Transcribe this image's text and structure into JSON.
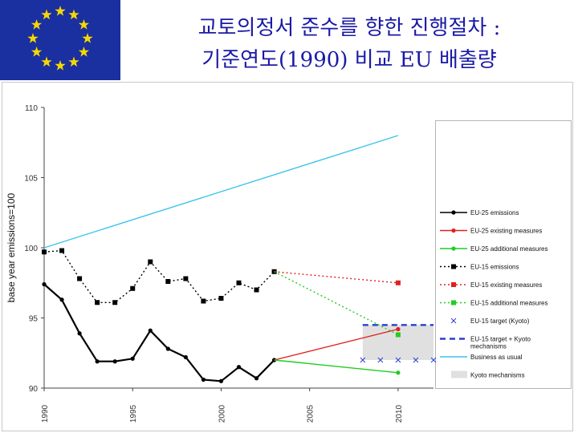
{
  "header": {
    "title_line1": "교토의정서 준수를 향한 진행절차 :",
    "title_line2": "기준연도(1990) 비교 EU 배출량",
    "flag_color": "#1a2fa0",
    "star_color": "#f5d800"
  },
  "chart_data": {
    "type": "line",
    "ylabel": "base year emissions=100",
    "xlim": [
      1990,
      2012
    ],
    "ylim": [
      90,
      110
    ],
    "x_ticks": [
      1990,
      1995,
      2000,
      2005,
      2010
    ],
    "y_ticks": [
      90,
      95,
      100,
      105,
      110
    ],
    "grid": false,
    "legend_position": "right",
    "series": [
      {
        "name": "EU-25 emissions",
        "color": "#000000",
        "style": "solid",
        "marker": "circle",
        "x": [
          1990,
          1991,
          1992,
          1993,
          1994,
          1995,
          1996,
          1997,
          1998,
          1999,
          2000,
          2001,
          2002,
          2003
        ],
        "y": [
          97.4,
          96.3,
          93.9,
          91.9,
          91.9,
          92.1,
          94.1,
          92.8,
          92.2,
          90.6,
          90.5,
          91.5,
          90.7,
          92.0
        ]
      },
      {
        "name": "EU-25 existing measures",
        "color": "#e02020",
        "style": "solid",
        "marker": "circle",
        "x": [
          2003,
          2010
        ],
        "y": [
          92.0,
          94.2
        ]
      },
      {
        "name": "EU-25 additional measures",
        "color": "#22cc22",
        "style": "solid",
        "marker": "circle",
        "x": [
          2003,
          2010
        ],
        "y": [
          92.0,
          91.1
        ]
      },
      {
        "name": "EU-15 emissions",
        "color": "#000000",
        "style": "dotted",
        "marker": "square",
        "x": [
          1990,
          1991,
          1992,
          1993,
          1994,
          1995,
          1996,
          1997,
          1998,
          1999,
          2000,
          2001,
          2002,
          2003
        ],
        "y": [
          99.7,
          99.8,
          97.8,
          96.1,
          96.1,
          97.1,
          99.0,
          97.6,
          97.8,
          96.2,
          96.4,
          97.5,
          97.0,
          98.3
        ]
      },
      {
        "name": "EU-15 existing measures",
        "color": "#e02020",
        "style": "dotted",
        "marker": "square",
        "x": [
          2003,
          2010
        ],
        "y": [
          98.3,
          97.5
        ]
      },
      {
        "name": "EU-15 additional measures",
        "color": "#22cc22",
        "style": "dotted",
        "marker": "square",
        "x": [
          2003,
          2010
        ],
        "y": [
          98.3,
          93.8
        ]
      },
      {
        "name": "EU-15 target (Kyoto)",
        "color": "#2a3fd0",
        "style": "none",
        "marker": "x",
        "x": [
          2008,
          2009,
          2010,
          2011,
          2012
        ],
        "y": [
          92.0,
          92.0,
          92.0,
          92.0,
          92.0
        ]
      },
      {
        "name": "EU-15 target + Kyoto mechanisms",
        "color": "#2a3fd0",
        "style": "dashed",
        "marker": "none",
        "x": [
          2008,
          2012
        ],
        "y": [
          94.5,
          94.5
        ]
      },
      {
        "name": "Business as usual",
        "color": "#3ec3ec",
        "style": "solid",
        "marker": "none",
        "x": [
          1990,
          2010
        ],
        "y": [
          100.0,
          108.0
        ]
      }
    ],
    "kyoto_mechanisms_band": {
      "name": "Kyoto mechanisms",
      "color": "#e0e0e0",
      "x": [
        2008,
        2012
      ],
      "y": [
        92.0,
        94.5
      ]
    }
  }
}
